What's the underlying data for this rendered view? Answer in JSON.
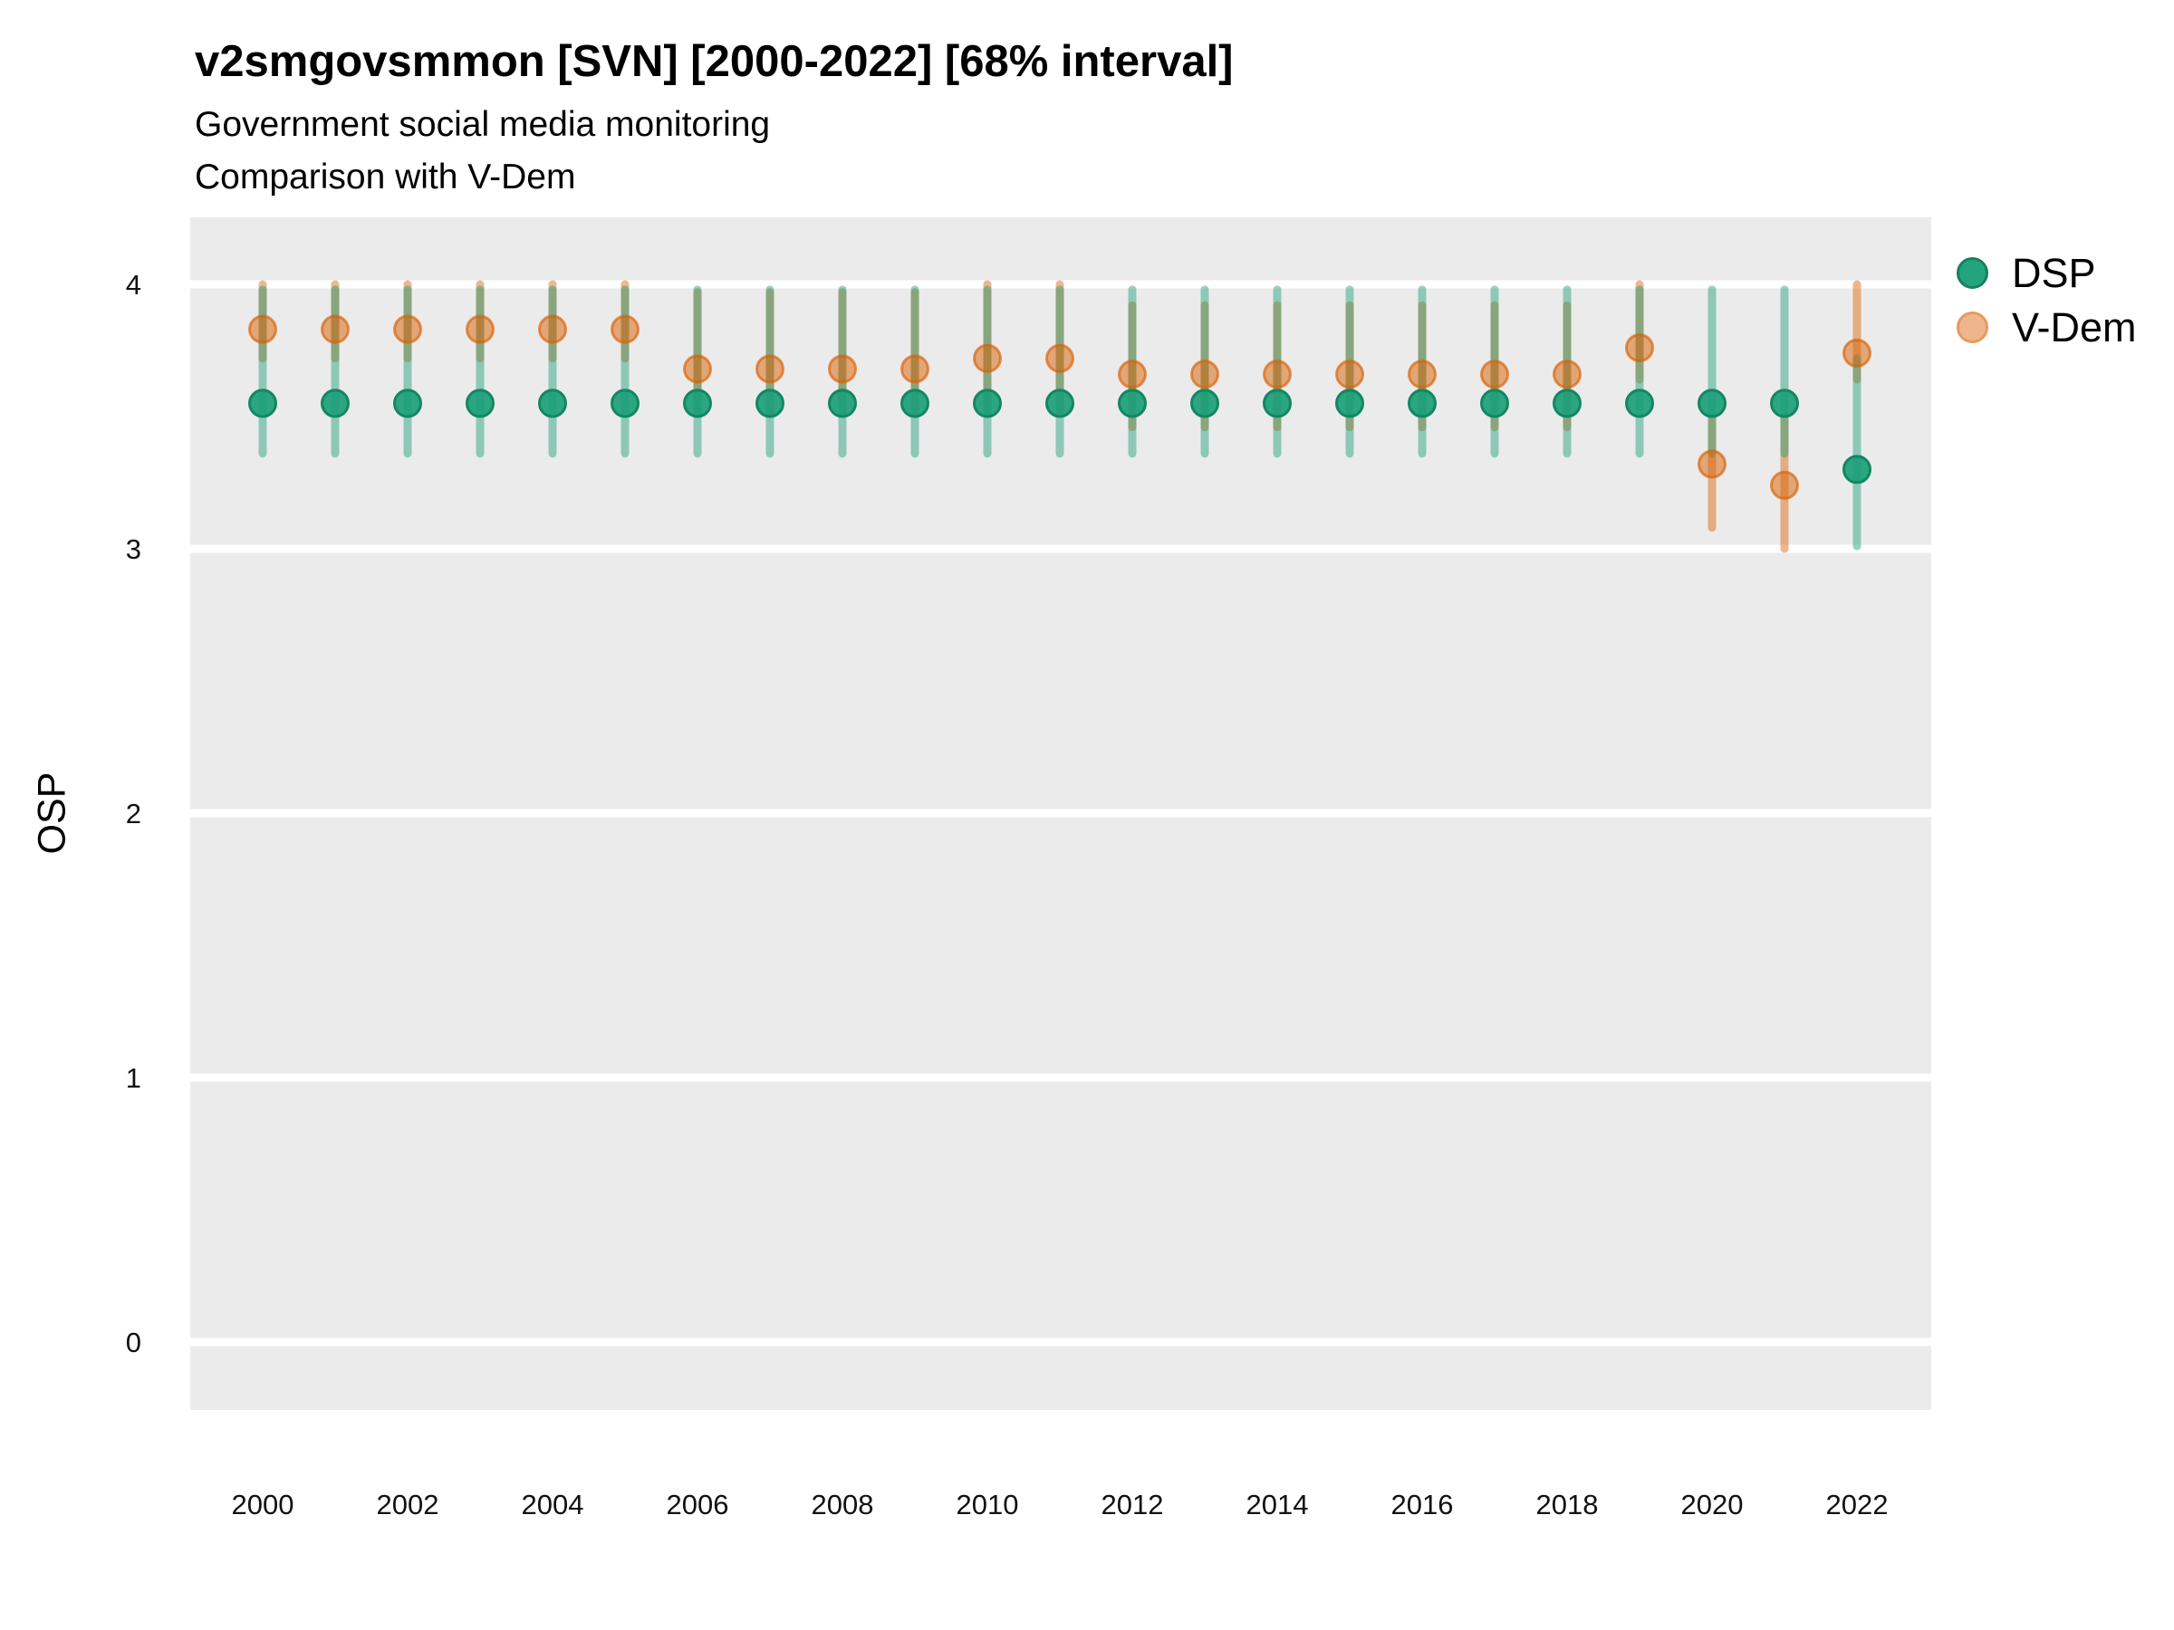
{
  "header": {
    "title": "v2smgovsmmon [SVN] [2000-2022] [68% interval]",
    "subtitle1": "Government social media monitoring",
    "subtitle2": "Comparison with V-Dem"
  },
  "axes": {
    "y_label": "OSP",
    "y_ticks": [
      4,
      3,
      2,
      1,
      0
    ],
    "x_ticks": [
      2000,
      2002,
      2004,
      2006,
      2008,
      2010,
      2012,
      2014,
      2016,
      2018,
      2020,
      2022
    ],
    "ylim": [
      -0.26,
      4.26
    ],
    "xlim": [
      1999,
      2023
    ],
    "grid": "major-horizontal-only"
  },
  "legend": {
    "items": [
      {
        "label": "DSP",
        "color": "#1b9e77"
      },
      {
        "label": "V-Dem",
        "color": "#d95f02"
      }
    ],
    "position": "right-top"
  },
  "colors": {
    "background": "#ffffff",
    "panel": "#ebebeb",
    "gridline": "#ffffff",
    "dsp": "#1b9e77",
    "dsp_point_stroke": "#128762",
    "vdem": "#d95f02",
    "vdem_point_stroke": "#d95f02",
    "legend_dsp_fill": "#24a47d",
    "legend_dsp_border": "#15815f",
    "legend_vdem_fill": "#edb68d",
    "legend_vdem_border": "#e79a5e"
  },
  "chart_data": {
    "type": "pointrange-scatter",
    "title": "v2smgovsmmon [SVN] [2000-2022] [68% interval]",
    "xlabel": "",
    "ylabel": "OSP",
    "interval": "68%",
    "x": [
      2000,
      2001,
      2002,
      2003,
      2004,
      2005,
      2006,
      2007,
      2008,
      2009,
      2010,
      2011,
      2012,
      2013,
      2014,
      2015,
      2016,
      2017,
      2018,
      2019,
      2020,
      2021,
      2022
    ],
    "series": [
      {
        "name": "DSP",
        "color": "#1b9e77",
        "values": [
          3.55,
          3.55,
          3.55,
          3.55,
          3.55,
          3.55,
          3.55,
          3.55,
          3.55,
          3.55,
          3.55,
          3.55,
          3.55,
          3.55,
          3.55,
          3.55,
          3.55,
          3.55,
          3.55,
          3.55,
          3.55,
          3.55,
          3.3
        ],
        "lo": [
          3.36,
          3.36,
          3.36,
          3.36,
          3.36,
          3.36,
          3.36,
          3.36,
          3.36,
          3.36,
          3.36,
          3.36,
          3.36,
          3.36,
          3.36,
          3.36,
          3.36,
          3.36,
          3.36,
          3.36,
          3.36,
          3.36,
          3.01
        ],
        "hi": [
          3.98,
          3.98,
          3.98,
          3.98,
          3.98,
          3.98,
          3.98,
          3.98,
          3.98,
          3.98,
          3.98,
          3.98,
          3.98,
          3.98,
          3.98,
          3.98,
          3.98,
          3.98,
          3.98,
          3.98,
          3.98,
          3.98,
          3.72
        ]
      },
      {
        "name": "V-Dem",
        "color": "#d95f02",
        "values": [
          3.83,
          3.83,
          3.83,
          3.83,
          3.83,
          3.83,
          3.68,
          3.68,
          3.68,
          3.68,
          3.72,
          3.72,
          3.66,
          3.66,
          3.66,
          3.66,
          3.66,
          3.66,
          3.66,
          3.76,
          3.32,
          3.24,
          3.74
        ],
        "lo": [
          3.72,
          3.72,
          3.72,
          3.72,
          3.72,
          3.72,
          3.51,
          3.51,
          3.51,
          3.51,
          3.52,
          3.52,
          3.46,
          3.46,
          3.46,
          3.46,
          3.46,
          3.46,
          3.46,
          3.64,
          3.08,
          3.0,
          3.64
        ],
        "hi": [
          4.0,
          4.0,
          4.0,
          4.0,
          4.0,
          4.0,
          3.97,
          3.97,
          3.97,
          3.97,
          4.0,
          4.0,
          3.92,
          3.92,
          3.92,
          3.92,
          3.92,
          3.92,
          3.92,
          4.0,
          3.5,
          3.5,
          4.0
        ]
      }
    ]
  }
}
